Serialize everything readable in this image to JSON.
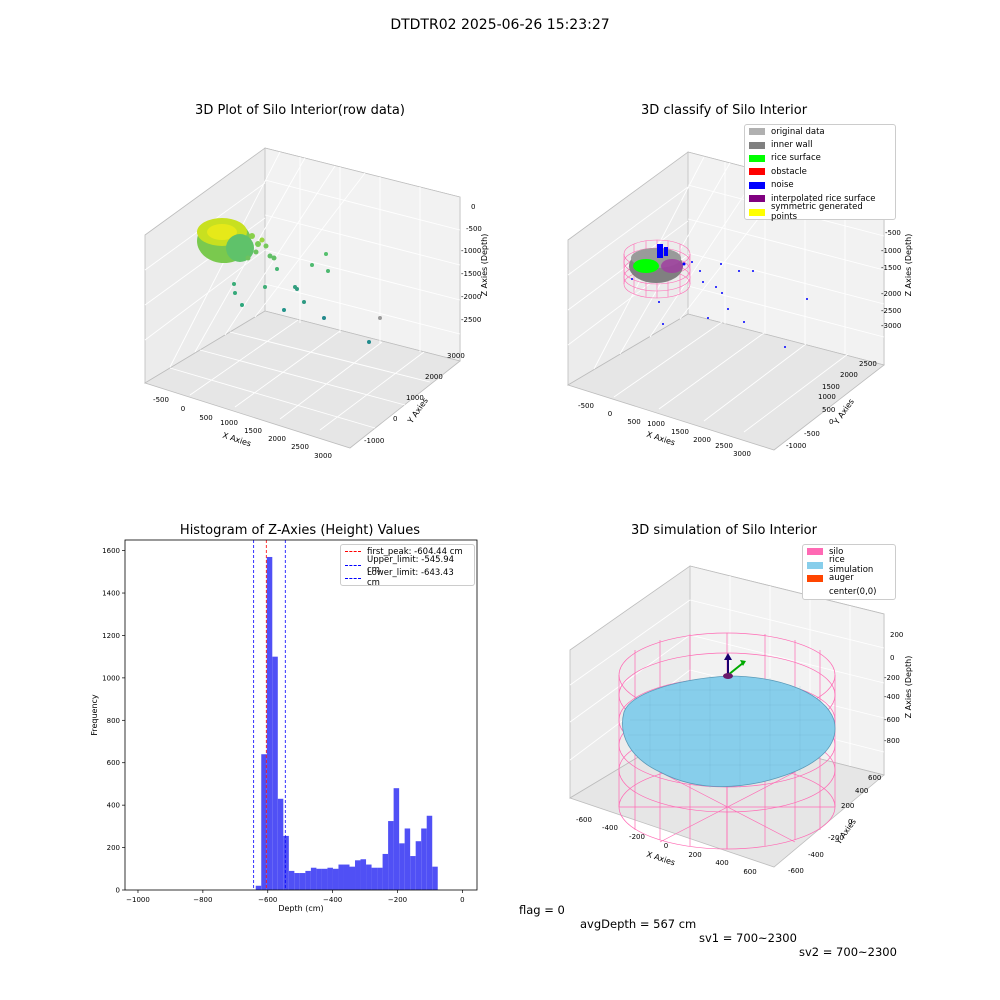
{
  "figure": {
    "title": "DTDTR02 2025-06-26 15:23:27"
  },
  "footer": {
    "flag": "flag = 0",
    "avgDepth": "avgDepth = 567 cm",
    "sv1": "sv1 = 700~2300",
    "sv2": "sv2 = 700~2300"
  },
  "chart_data": [
    {
      "type": "scatter",
      "panel": "raw",
      "title": "3D Plot of Silo Interior(row data)",
      "xlabel": "X Axies",
      "ylabel": "Y Axies",
      "zlabel": "Z Axies (Depth)",
      "x_ticks": [
        "-500",
        "0",
        "500",
        "1000",
        "1500",
        "2000",
        "2500",
        "3000"
      ],
      "y_ticks": [
        "-1000",
        "0",
        "1000",
        "2000",
        "3000"
      ],
      "z_ticks": [
        "0",
        "-500",
        "-1000",
        "-1500",
        "-2000",
        "-2500"
      ],
      "colormap": "viridis"
    },
    {
      "type": "scatter",
      "panel": "classify",
      "title": "3D classify of Silo Interior",
      "xlabel": "X Axies",
      "ylabel": "Y Axies",
      "zlabel": "Z Axies (Depth)",
      "x_ticks": [
        "-500",
        "0",
        "500",
        "1000",
        "1500",
        "2000",
        "2500",
        "3000"
      ],
      "y_ticks": [
        "-1000",
        "-500",
        "0",
        "500",
        "1000",
        "1500",
        "2000",
        "2500"
      ],
      "z_ticks": [
        "0",
        "-500",
        "-1000",
        "-1500",
        "-2000",
        "-2500",
        "-3000"
      ],
      "legend": [
        {
          "label": "original data",
          "color": "#b0b0b0"
        },
        {
          "label": "inner wall",
          "color": "#808080"
        },
        {
          "label": "rice surface",
          "color": "#00ff00"
        },
        {
          "label": "obstacle",
          "color": "#ff0000"
        },
        {
          "label": "noise",
          "color": "#0000ff"
        },
        {
          "label": "interpolated rice surface",
          "color": "#800080"
        },
        {
          "label": "symmetric generated points",
          "color": "#ffff00"
        }
      ]
    },
    {
      "type": "bar",
      "panel": "histogram",
      "title": "Histogram of Z-Axies (Height) Values",
      "xlabel": "Depth (cm)",
      "ylabel": "Frequency",
      "xlim": [
        -1040,
        45
      ],
      "ylim": [
        0,
        1650
      ],
      "x_ticks": [
        -1000,
        -800,
        -600,
        -400,
        -200,
        0
      ],
      "y_ticks": [
        0,
        200,
        400,
        600,
        800,
        1000,
        1200,
        1400,
        1600
      ],
      "bar_color": "#5050f5",
      "bin_width": 17,
      "bin_starts": [
        -637,
        -620,
        -603,
        -586,
        -569,
        -552,
        -535,
        -518,
        -501,
        -484,
        -467,
        -450,
        -433,
        -416,
        -399,
        -382,
        -365,
        -348,
        -331,
        -314,
        -297,
        -280,
        -263,
        -246,
        -229,
        -212,
        -195,
        -178,
        -161,
        -144,
        -127,
        -110,
        -93,
        -76,
        -59,
        -42,
        -25,
        -8
      ],
      "counts": [
        20,
        640,
        1570,
        1100,
        430,
        255,
        90,
        80,
        80,
        90,
        105,
        100,
        100,
        105,
        100,
        120,
        120,
        110,
        140,
        145,
        120,
        105,
        105,
        170,
        325,
        480,
        220,
        290,
        160,
        230,
        290,
        350,
        110,
        0,
        0,
        0,
        0,
        0
      ],
      "lines": [
        {
          "label": "first_peak: -604.44 cm",
          "x": -604.44,
          "color": "#ff0000"
        },
        {
          "label": "Upper_limit: -545.94 cm",
          "x": -545.94,
          "color": "#0000ff"
        },
        {
          "label": "Lower_limit: -643.43 cm",
          "x": -643.43,
          "color": "#0000ff"
        }
      ]
    },
    {
      "type": "surface",
      "panel": "simulation",
      "title": "3D simulation of Silo Interior",
      "xlabel": "X Axies",
      "ylabel": "Y Axies",
      "zlabel": "Z Axies (Depth)",
      "x_ticks": [
        "-600",
        "-400",
        "-200",
        "0",
        "200",
        "400",
        "600"
      ],
      "y_ticks": [
        "-600",
        "-400",
        "-200",
        "0",
        "200",
        "400",
        "600"
      ],
      "z_ticks": [
        "200",
        "0",
        "-200",
        "-400",
        "-600",
        "-800"
      ],
      "legend": [
        {
          "label": "silo",
          "color": "#ff69b4"
        },
        {
          "label": "rice simulation",
          "color": "#87ceeb"
        },
        {
          "label": "auger",
          "color": "#ff4500"
        },
        {
          "label": "center(0,0)",
          "color": "#ffffff"
        }
      ]
    }
  ]
}
